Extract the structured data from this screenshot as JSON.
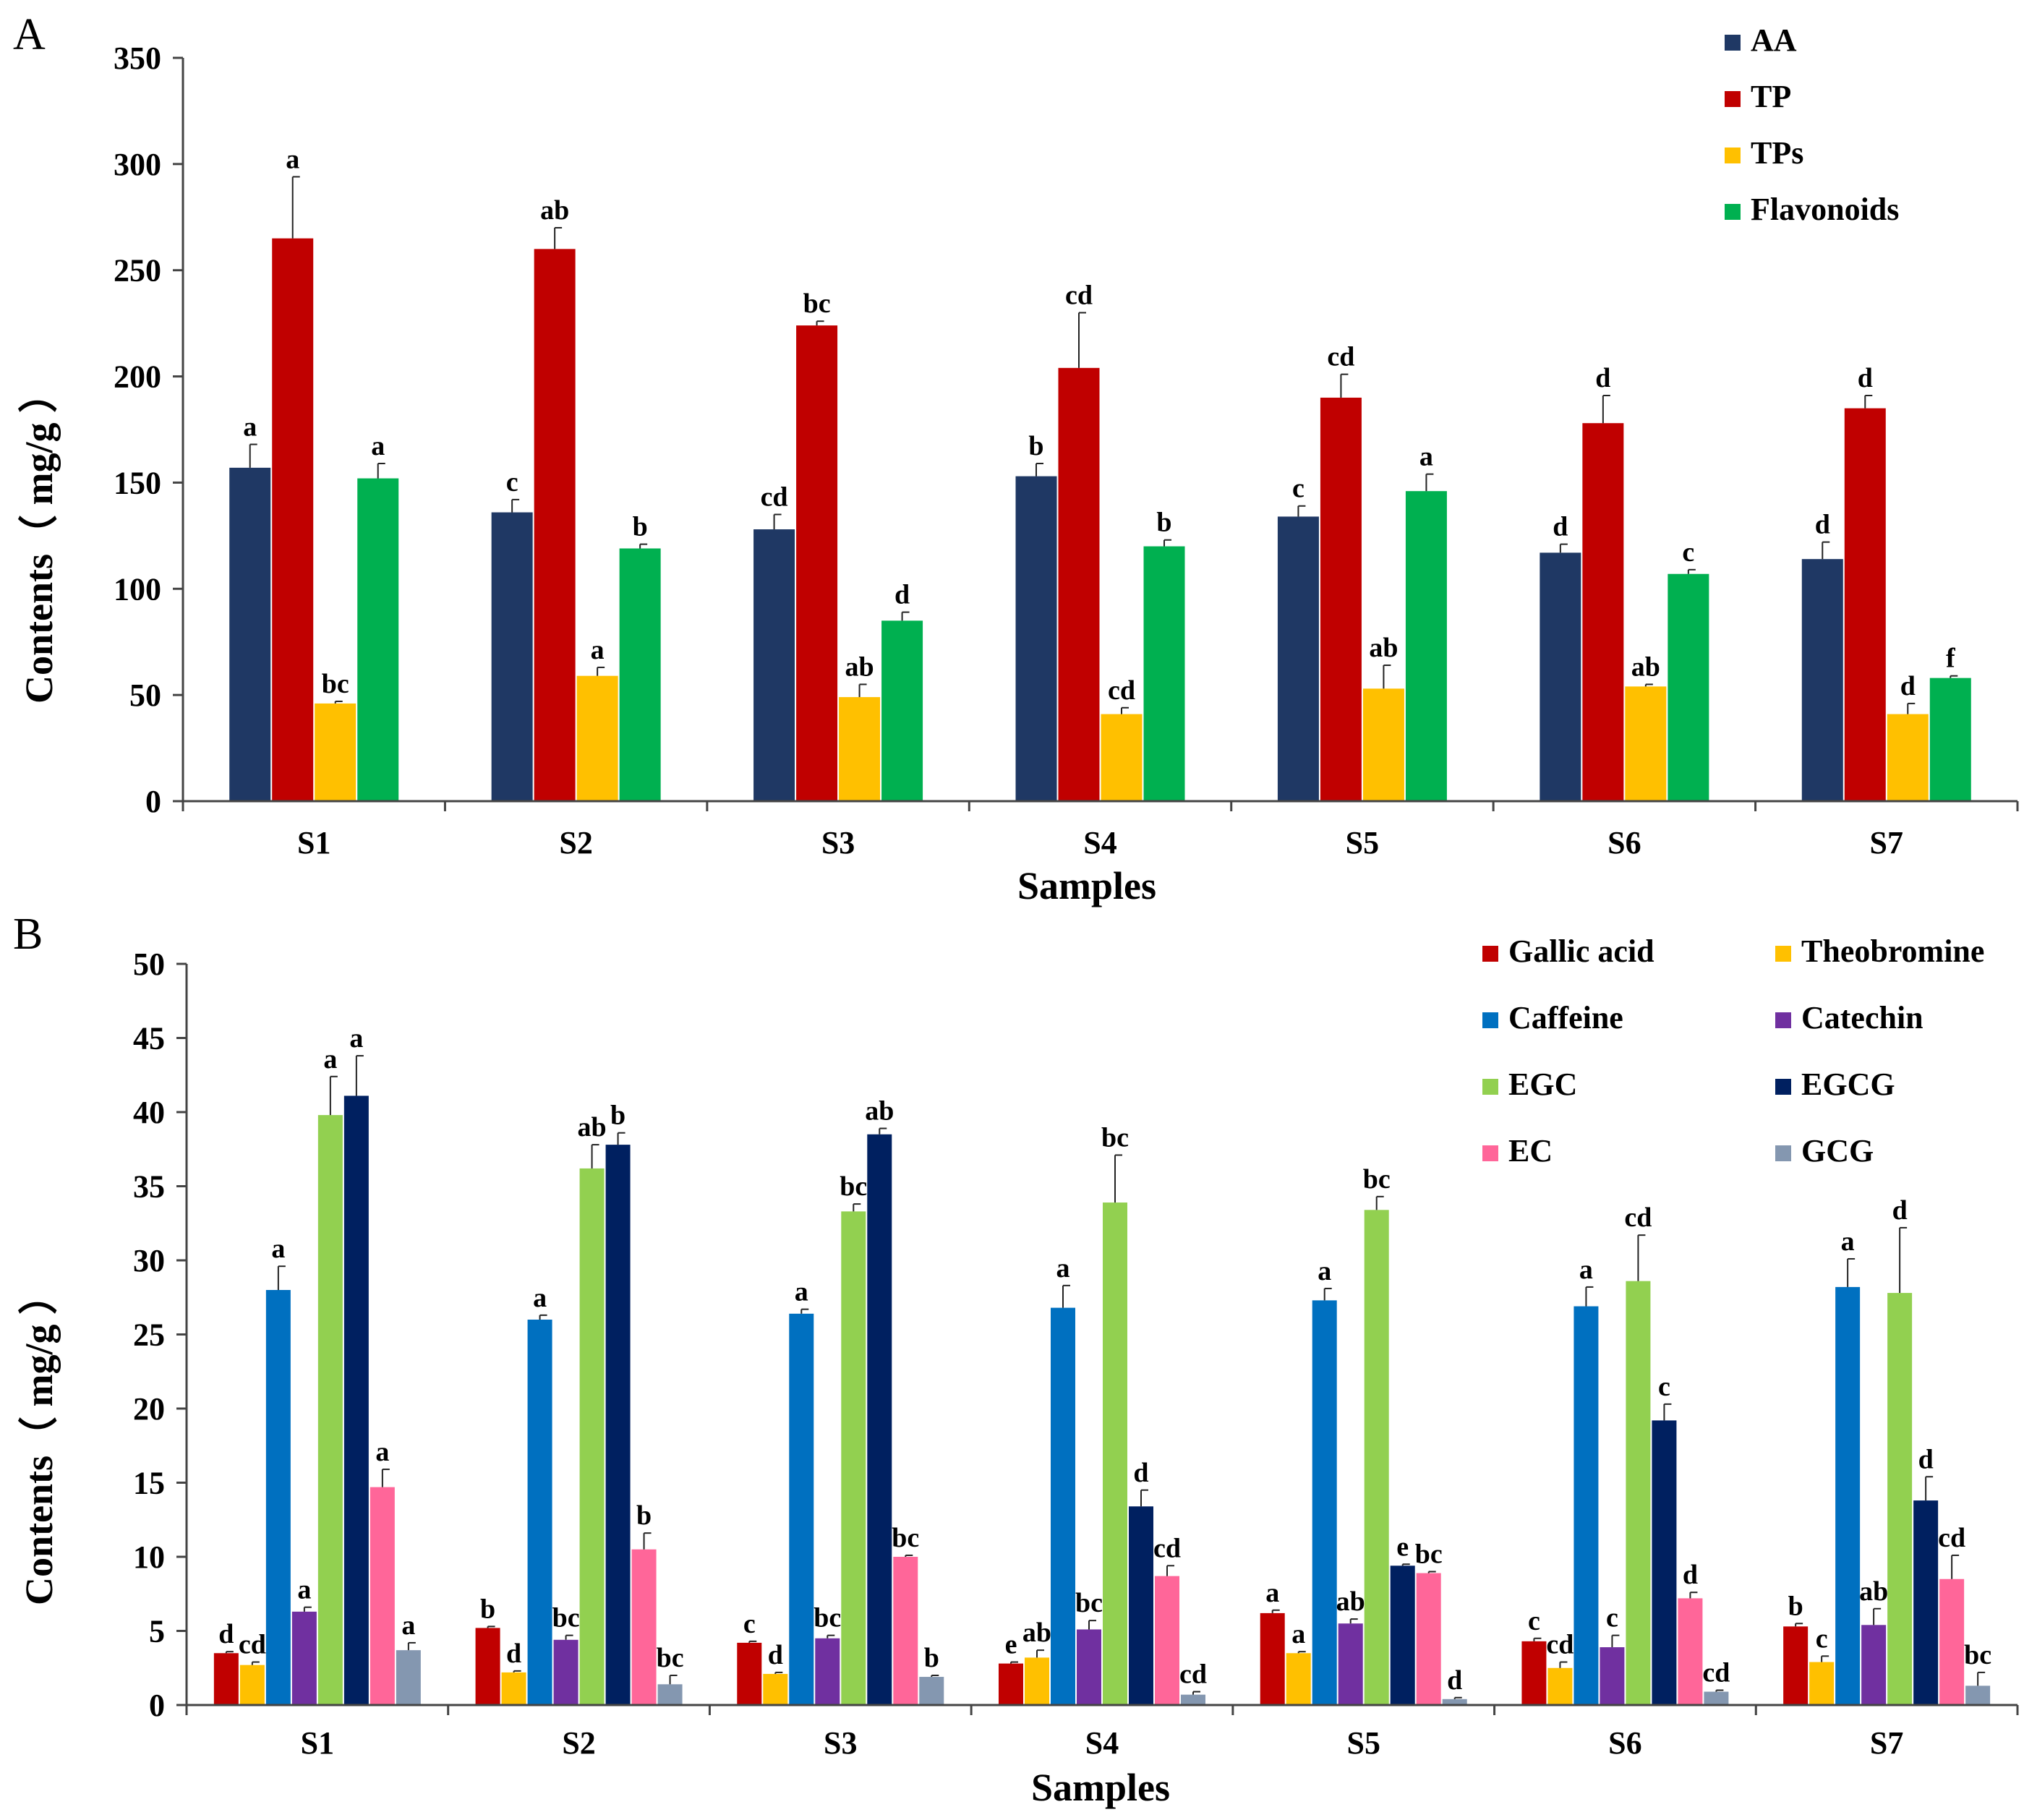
{
  "chart_data": [
    {
      "panel": "A",
      "type": "bar",
      "xlabel": "Samples",
      "ylabel": "Contents（ mg/g ）",
      "ylim": [
        0,
        350
      ],
      "yticks": [
        0,
        50,
        100,
        150,
        200,
        250,
        300,
        350
      ],
      "categories": [
        "S1",
        "S2",
        "S3",
        "S4",
        "S5",
        "S6",
        "S7"
      ],
      "legend_position": "top-right",
      "series": [
        {
          "name": "AA",
          "color": "#1f3864",
          "values": [
            157,
            136,
            128,
            153,
            134,
            117,
            114
          ],
          "errors": [
            11,
            6,
            7,
            6,
            5,
            4,
            8
          ],
          "letters": [
            "a",
            "c",
            "cd",
            "b",
            "c",
            "d",
            "d"
          ]
        },
        {
          "name": "TP",
          "color": "#c00000",
          "values": [
            265,
            260,
            224,
            204,
            190,
            178,
            185
          ],
          "errors": [
            29,
            10,
            2,
            26,
            11,
            13,
            6
          ],
          "letters": [
            "a",
            "ab",
            "bc",
            "cd",
            "cd",
            "d",
            "d"
          ]
        },
        {
          "name": "TPs",
          "color": "#ffc000",
          "values": [
            46,
            59,
            49,
            41,
            53,
            54,
            41
          ],
          "errors": [
            1,
            4,
            6,
            3,
            11,
            1,
            5
          ],
          "letters": [
            "bc",
            "a",
            "ab",
            "cd",
            "ab",
            "ab",
            "d"
          ]
        },
        {
          "name": "Flavonoids",
          "color": "#00b050",
          "values": [
            152,
            119,
            85,
            120,
            146,
            107,
            58
          ],
          "errors": [
            7,
            2,
            4,
            3,
            8,
            2,
            1
          ],
          "letters": [
            "a",
            "b",
            "d",
            "b",
            "a",
            "c",
            "f"
          ]
        }
      ]
    },
    {
      "panel": "B",
      "type": "bar",
      "xlabel": "Samples",
      "ylabel": "Contents（ mg/g ）",
      "ylim": [
        0,
        50
      ],
      "yticks": [
        0,
        5,
        10,
        15,
        20,
        25,
        30,
        35,
        40,
        45,
        50
      ],
      "categories": [
        "S1",
        "S2",
        "S3",
        "S4",
        "S5",
        "S6",
        "S7"
      ],
      "legend_position": "top-right",
      "series": [
        {
          "name": "Gallic acid",
          "color": "#c00000",
          "values": [
            3.5,
            5.2,
            4.2,
            2.8,
            6.2,
            4.3,
            5.3
          ],
          "errors": [
            0.1,
            0.1,
            0.1,
            0.1,
            0.2,
            0.2,
            0.2
          ],
          "letters": [
            "d",
            "b",
            "c",
            "e",
            "a",
            "c",
            "b"
          ]
        },
        {
          "name": "Theobromine",
          "color": "#ffc000",
          "values": [
            2.7,
            2.2,
            2.1,
            3.2,
            3.5,
            2.5,
            2.9
          ],
          "errors": [
            0.2,
            0.1,
            0.1,
            0.5,
            0.1,
            0.4,
            0.4
          ],
          "letters": [
            "cd",
            "d",
            "d",
            "ab",
            "a",
            "cd",
            "c"
          ]
        },
        {
          "name": "Caffeine",
          "color": "#0070c0",
          "values": [
            28,
            26,
            26.4,
            26.8,
            27.3,
            26.9,
            28.2
          ],
          "errors": [
            1.6,
            0.3,
            0.3,
            1.5,
            0.8,
            1.3,
            1.9
          ],
          "letters": [
            "a",
            "a",
            "a",
            "a",
            "a",
            "a",
            "a"
          ]
        },
        {
          "name": "Catechin",
          "color": "#7030a0",
          "values": [
            6.3,
            4.4,
            4.5,
            5.1,
            5.5,
            3.9,
            5.4
          ],
          "errors": [
            0.3,
            0.3,
            0.2,
            0.6,
            0.3,
            0.8,
            1.1
          ],
          "letters": [
            "a",
            "bc",
            "bc",
            "bc",
            "ab",
            "c",
            "ab"
          ]
        },
        {
          "name": "EGC",
          "color": "#92d050",
          "values": [
            39.8,
            36.2,
            33.3,
            33.9,
            33.4,
            28.6,
            27.8
          ],
          "errors": [
            2.6,
            1.6,
            0.5,
            3.2,
            0.9,
            3.1,
            4.4
          ],
          "letters": [
            "a",
            "ab",
            "bc",
            "bc",
            "bc",
            "cd",
            "d"
          ]
        },
        {
          "name": "EGCG",
          "color": "#002060",
          "values": [
            41.1,
            37.8,
            38.5,
            13.4,
            9.4,
            19.2,
            13.8
          ],
          "errors": [
            2.7,
            0.8,
            0.4,
            1.1,
            0.1,
            1.1,
            1.6
          ],
          "letters": [
            "a",
            "b",
            "ab",
            "d",
            "e",
            "c",
            "d"
          ]
        },
        {
          "name": "EC",
          "color": "#ff6699",
          "values": [
            14.7,
            10.5,
            10,
            8.7,
            8.9,
            7.2,
            8.5
          ],
          "errors": [
            1.2,
            1.1,
            0.1,
            0.7,
            0.1,
            0.4,
            1.6
          ],
          "letters": [
            "a",
            "b",
            "bc",
            "cd",
            "bc",
            "d",
            "cd"
          ]
        },
        {
          "name": "GCG",
          "color": "#8497b0",
          "values": [
            3.7,
            1.4,
            1.9,
            0.7,
            0.4,
            0.9,
            1.3
          ],
          "errors": [
            0.5,
            0.6,
            0.1,
            0.2,
            0.1,
            0.1,
            0.9
          ],
          "letters": [
            "a",
            "bc",
            "b",
            "cd",
            "d",
            "cd",
            "bc"
          ]
        }
      ]
    }
  ]
}
